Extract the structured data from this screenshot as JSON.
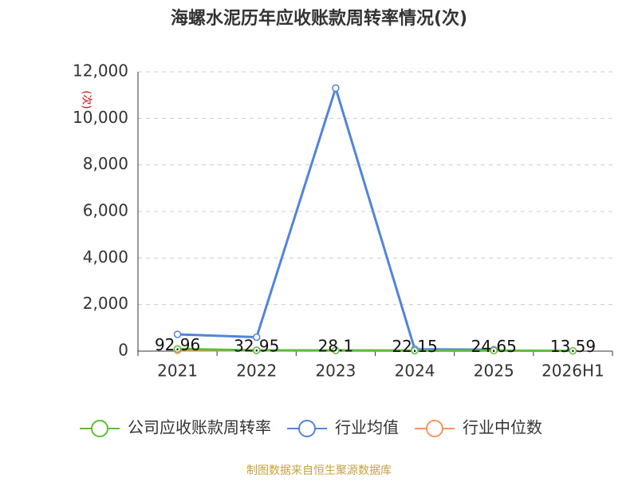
{
  "chart_data": {
    "type": "line",
    "title": "海螺水泥历年应收账款周转率情况(次)",
    "y_label": "(次)",
    "categories": [
      "2021",
      "2022",
      "2023",
      "2024",
      "2025",
      "2026H1"
    ],
    "series": [
      {
        "name": "公司应收账款周转率",
        "color": "#5cbd3a",
        "values": [
          92.96,
          32.95,
          28.1,
          22.15,
          24.65,
          13.59
        ],
        "show_labels": true
      },
      {
        "name": "行业均值",
        "color": "#5284d8",
        "values": [
          720,
          600,
          11300,
          80,
          60,
          null
        ]
      },
      {
        "name": "行业中位数",
        "color": "#f4955f",
        "values": [
          40,
          35,
          30,
          25,
          25,
          null
        ]
      }
    ],
    "ylim": [
      0,
      12000
    ],
    "yticks": [
      0,
      {
        "value": 2000,
        "label": "2,000"
      },
      {
        "value": 4000,
        "label": "4,000"
      },
      {
        "value": 6000,
        "label": "6,000"
      },
      {
        "value": 8000,
        "label": "8,000"
      },
      {
        "value": 10000,
        "label": "10,000"
      },
      {
        "value": 12000,
        "label": "12,000"
      }
    ],
    "grid": true,
    "legend": "bottom",
    "source": "制图数据来自恒生聚源数据库"
  }
}
